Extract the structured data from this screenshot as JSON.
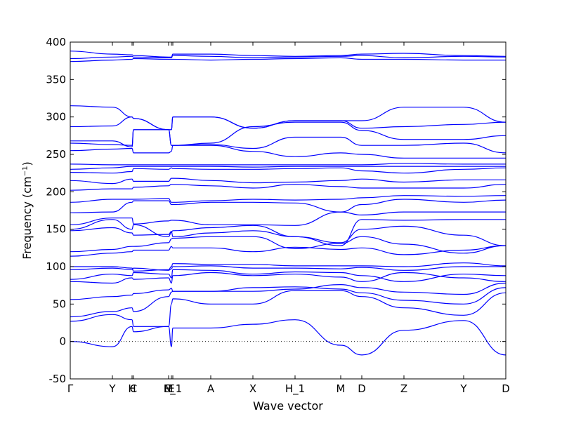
{
  "chart_data": {
    "type": "line",
    "title": "",
    "xlabel": "Wave vector",
    "ylabel": "Frequency (cm⁻¹)",
    "ylim": [
      -50,
      400
    ],
    "yticks": [
      -50,
      0,
      50,
      100,
      150,
      200,
      250,
      300,
      350,
      400
    ],
    "grid": false,
    "legend": "none",
    "line_color": "#0000ff",
    "x_path_positions": [
      0,
      0.6,
      0.88,
      0.9,
      1.4,
      1.44,
      2.0,
      2.6,
      3.2,
      3.85,
      4.15,
      4.75,
      5.6,
      6.2
    ],
    "x_tick_labels": [
      "Γ",
      "Y",
      "H",
      "C",
      "M",
      "E",
      "E_1",
      "A",
      "X",
      "H_1",
      "M",
      "D",
      "Z",
      "Y",
      "D"
    ],
    "x_tick_positions": [
      0,
      0.6,
      0.88,
      0.9,
      1.4,
      1.44,
      1.46,
      2.0,
      2.6,
      3.2,
      3.85,
      4.15,
      4.75,
      5.6,
      6.2
    ],
    "series": [
      {
        "values": [
          0,
          -7,
          20,
          13,
          20,
          -7,
          18,
          18,
          23,
          29,
          -5,
          -18,
          15,
          28,
          -18
        ]
      },
      {
        "values": [
          27,
          36,
          29,
          20,
          20,
          50,
          57,
          50,
          50,
          68,
          68,
          60,
          45,
          35,
          65
        ]
      },
      {
        "values": [
          33,
          40,
          45,
          40,
          60,
          66,
          67,
          67,
          72,
          73,
          70,
          65,
          55,
          50,
          72
        ]
      },
      {
        "values": [
          56,
          60,
          62,
          64,
          69,
          71,
          67,
          67,
          67,
          70,
          76,
          72,
          66,
          63,
          78
        ]
      },
      {
        "values": [
          80,
          78,
          85,
          83,
          85,
          78,
          88,
          92,
          88,
          90,
          86,
          80,
          92,
          85,
          80
        ]
      },
      {
        "values": [
          83,
          90,
          88,
          92,
          90,
          85,
          96,
          95,
          90,
          93,
          92,
          88,
          80,
          90,
          88
        ]
      },
      {
        "values": [
          96,
          98,
          96,
          98,
          95,
          97,
          100,
          101,
          98,
          98,
          97,
          99,
          95,
          100,
          100
        ]
      },
      {
        "values": [
          100,
          100,
          98,
          94,
          96,
          100,
          104,
          103,
          103,
          101,
          101,
          101,
          100,
          105,
          101
        ]
      },
      {
        "values": [
          114,
          118,
          120,
          122,
          122,
          127,
          125,
          125,
          120,
          126,
          123,
          125,
          116,
          122,
          128
        ]
      },
      {
        "values": [
          120,
          123,
          127,
          127,
          132,
          137,
          138,
          140,
          140,
          124,
          131,
          140,
          130,
          118,
          128
        ]
      },
      {
        "values": [
          148,
          152,
          145,
          142,
          143,
          147,
          140,
          145,
          148,
          140,
          132,
          150,
          154,
          142,
          128
        ]
      },
      {
        "values": [
          150,
          163,
          150,
          156,
          140,
          146,
          148,
          152,
          155,
          140,
          128,
          163,
          162,
          163,
          163
        ]
      },
      {
        "values": [
          156,
          165,
          165,
          157,
          161,
          162,
          162,
          156,
          156,
          155,
          173,
          169,
          173,
          173,
          173
        ]
      },
      {
        "values": [
          172,
          173,
          186,
          188,
          188,
          183,
          183,
          186,
          186,
          185,
          173,
          183,
          190,
          186,
          189
        ]
      },
      {
        "values": [
          186,
          190,
          190,
          190,
          191,
          186,
          186,
          188,
          190,
          189,
          190,
          192,
          195,
          194,
          195
        ]
      },
      {
        "values": [
          202,
          204,
          204,
          206,
          208,
          210,
          210,
          208,
          205,
          210,
          207,
          205,
          205,
          205,
          210
        ]
      },
      {
        "values": [
          215,
          211,
          217,
          214,
          214,
          218,
          218,
          215,
          212,
          213,
          215,
          217,
          213,
          216,
          216
        ]
      },
      {
        "values": [
          226,
          225,
          227,
          231,
          230,
          232,
          231,
          230,
          230,
          231,
          232,
          228,
          225,
          230,
          232
        ]
      },
      {
        "values": [
          230,
          232,
          234,
          234,
          234,
          234,
          234,
          234,
          233,
          234,
          234,
          234,
          234,
          234,
          234
        ]
      },
      {
        "values": [
          237,
          236,
          236,
          236,
          236,
          236,
          236,
          236,
          236,
          236,
          236,
          236,
          238,
          237,
          237
        ]
      },
      {
        "values": [
          255,
          257,
          258,
          252,
          252,
          254,
          262,
          262,
          254,
          247,
          252,
          250,
          245,
          245,
          245
        ]
      },
      {
        "values": [
          265,
          263,
          262,
          283,
          283,
          262,
          262,
          263,
          258,
          273,
          273,
          262,
          262,
          265,
          252
        ]
      },
      {
        "values": [
          268,
          268,
          260,
          283,
          283,
          262,
          262,
          265,
          287,
          293,
          293,
          282,
          270,
          270,
          275
        ]
      },
      {
        "values": [
          287,
          288,
          300,
          298,
          283,
          283,
          300,
          300,
          285,
          295,
          295,
          285,
          287,
          290,
          293
        ]
      },
      {
        "values": [
          315,
          313,
          300,
          298,
          283,
          283,
          300,
          300,
          285,
          295,
          295,
          295,
          313,
          313,
          293
        ]
      },
      {
        "values": [
          374,
          376,
          377,
          378,
          377,
          377,
          377,
          376,
          377,
          378,
          379,
          377,
          377,
          376,
          376
        ]
      },
      {
        "values": [
          378,
          380,
          381,
          380,
          379,
          379,
          382,
          381,
          379,
          380,
          381,
          382,
          379,
          381,
          380
        ]
      },
      {
        "values": [
          388,
          384,
          383,
          382,
          380,
          380,
          384,
          384,
          382,
          381,
          382,
          384,
          385,
          382,
          381
        ]
      }
    ]
  }
}
